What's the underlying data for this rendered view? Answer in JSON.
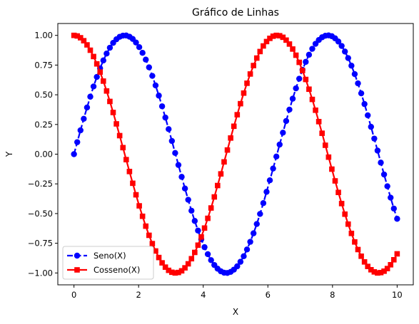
{
  "chart_data": {
    "type": "line",
    "title": "Gráfico de Linhas",
    "xlabel": "X",
    "ylabel": "Y",
    "xlim": [
      -0.5,
      10.5
    ],
    "ylim": [
      -1.1,
      1.1
    ],
    "xticks": [
      0,
      2,
      4,
      6,
      8,
      10
    ],
    "xtick_labels": [
      "0",
      "2",
      "4",
      "6",
      "8",
      "10"
    ],
    "yticks": [
      -1.0,
      -0.75,
      -0.5,
      -0.25,
      0.0,
      0.25,
      0.5,
      0.75,
      1.0
    ],
    "ytick_labels": [
      "−1.00",
      "−0.75",
      "−0.50",
      "−0.25",
      "0.00",
      "0.25",
      "0.50",
      "0.75",
      "1.00"
    ],
    "grid": false,
    "legend_position": "lower-left",
    "x": [
      0.0,
      0.101,
      0.202,
      0.303,
      0.404,
      0.505,
      0.606,
      0.707,
      0.808,
      0.909,
      1.01,
      1.111,
      1.212,
      1.313,
      1.414,
      1.515,
      1.616,
      1.717,
      1.818,
      1.919,
      2.02,
      2.121,
      2.222,
      2.323,
      2.424,
      2.525,
      2.626,
      2.727,
      2.828,
      2.929,
      3.03,
      3.131,
      3.232,
      3.333,
      3.434,
      3.535,
      3.636,
      3.737,
      3.838,
      3.939,
      4.04,
      4.141,
      4.242,
      4.343,
      4.444,
      4.545,
      4.646,
      4.747,
      4.848,
      4.949,
      5.051,
      5.152,
      5.253,
      5.354,
      5.455,
      5.556,
      5.657,
      5.758,
      5.859,
      5.96,
      6.061,
      6.162,
      6.263,
      6.364,
      6.465,
      6.566,
      6.667,
      6.768,
      6.869,
      6.97,
      7.071,
      7.172,
      7.273,
      7.374,
      7.475,
      7.576,
      7.677,
      7.778,
      7.879,
      7.98,
      8.081,
      8.182,
      8.283,
      8.384,
      8.485,
      8.586,
      8.687,
      8.788,
      8.889,
      8.99,
      9.091,
      9.192,
      9.293,
      9.394,
      9.495,
      9.596,
      9.697,
      9.798,
      9.899,
      10.0
    ],
    "series": [
      {
        "name": "Seno(X)",
        "color": "#0000ff",
        "marker": "circle",
        "linestyle": "dashed",
        "values": [
          0.0,
          0.101,
          0.201,
          0.298,
          0.393,
          0.484,
          0.57,
          0.65,
          0.723,
          0.789,
          0.847,
          0.896,
          0.937,
          0.967,
          0.988,
          0.998,
          0.999,
          0.989,
          0.97,
          0.94,
          0.901,
          0.853,
          0.796,
          0.731,
          0.659,
          0.579,
          0.493,
          0.403,
          0.308,
          0.211,
          0.111,
          0.01,
          -0.091,
          -0.191,
          -0.289,
          -0.384,
          -0.476,
          -0.562,
          -0.643,
          -0.717,
          -0.783,
          -0.842,
          -0.892,
          -0.933,
          -0.964,
          -0.986,
          -0.998,
          -1.0,
          -0.991,
          -0.972,
          -0.944,
          -0.906,
          -0.859,
          -0.802,
          -0.738,
          -0.666,
          -0.588,
          -0.503,
          -0.412,
          -0.317,
          -0.22,
          -0.121,
          -0.02,
          0.081,
          0.181,
          0.279,
          0.375,
          0.467,
          0.554,
          0.635,
          0.71,
          0.777,
          0.837,
          0.887,
          0.929,
          0.961,
          0.984,
          0.997,
          1.0,
          0.993,
          0.975,
          0.948,
          0.911,
          0.864,
          0.809,
          0.745,
          0.674,
          0.596,
          0.512,
          0.422,
          0.327,
          0.23,
          0.131,
          0.03,
          -0.071,
          -0.171,
          -0.27,
          -0.366,
          -0.458,
          -0.544
        ]
      },
      {
        "name": "Cosseno(X)",
        "color": "#ff0000",
        "marker": "square",
        "linestyle": "solid",
        "values": [
          1.0,
          0.995,
          0.98,
          0.955,
          0.92,
          0.875,
          0.822,
          0.76,
          0.691,
          0.615,
          0.532,
          0.444,
          0.351,
          0.255,
          0.156,
          0.055,
          -0.046,
          -0.146,
          -0.245,
          -0.342,
          -0.435,
          -0.523,
          -0.606,
          -0.683,
          -0.753,
          -0.815,
          -0.87,
          -0.915,
          -0.951,
          -0.978,
          -0.994,
          -1.0,
          -0.996,
          -0.982,
          -0.957,
          -0.923,
          -0.88,
          -0.827,
          -0.766,
          -0.697,
          -0.622,
          -0.54,
          -0.453,
          -0.36,
          -0.264,
          -0.166,
          -0.065,
          0.035,
          0.136,
          0.235,
          0.332,
          0.425,
          0.514,
          0.597,
          0.675,
          0.746,
          0.809,
          0.864,
          0.911,
          0.948,
          0.975,
          0.993,
          1.0,
          0.997,
          0.984,
          0.96,
          0.927,
          0.885,
          0.833,
          0.773,
          0.704,
          0.629,
          0.547,
          0.461,
          0.37,
          0.274,
          0.176,
          0.075,
          -0.025,
          -0.126,
          -0.225,
          -0.322,
          -0.416,
          -0.505,
          -0.589,
          -0.667,
          -0.739,
          -0.803,
          -0.859,
          -0.907,
          -0.945,
          -0.973,
          -0.991,
          -1.0,
          -0.997,
          -0.985,
          -0.963,
          -0.931,
          -0.889,
          -0.839
        ]
      }
    ]
  }
}
